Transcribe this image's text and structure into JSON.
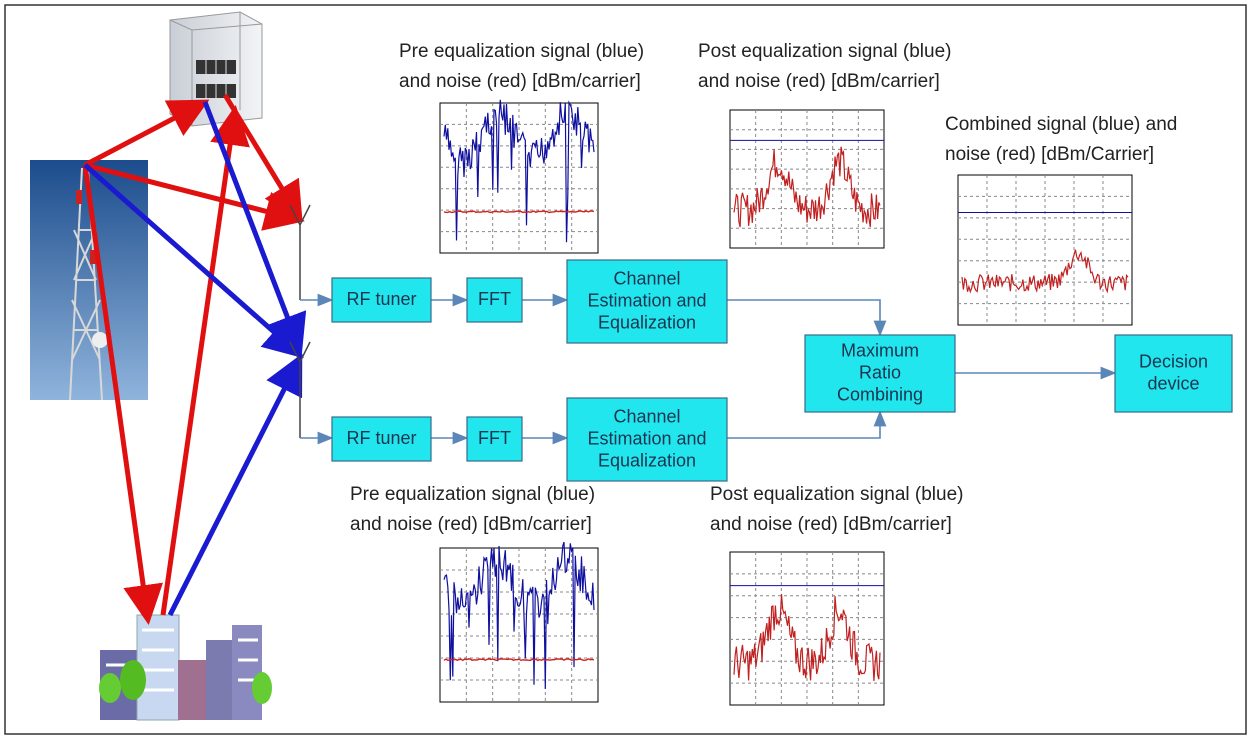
{
  "captions": [
    {
      "lines": [
        "Pre equalization signal (blue)",
        "and noise (red) [dBm/carrier]"
      ]
    },
    {
      "lines": [
        "Post equalization signal (blue)",
        "and noise (red) [dBm/carrier]"
      ]
    },
    {
      "lines": [
        "Combined signal (blue) and",
        "noise (red) [dBm/Carrier]"
      ]
    },
    {
      "lines": [
        "Pre equalization signal (blue)",
        "and noise (red) [dBm/carrier]"
      ]
    },
    {
      "lines": [
        "Post equalization signal (blue)",
        "and noise (red) [dBm/carrier]"
      ]
    }
  ],
  "blocks": [
    {
      "lines": [
        "RF tuner"
      ]
    },
    {
      "lines": [
        "FFT"
      ]
    },
    {
      "lines": [
        "Channel",
        "Estimation and",
        "Equalization"
      ]
    },
    {
      "lines": [
        "RF tuner"
      ]
    },
    {
      "lines": [
        "FFT"
      ]
    },
    {
      "lines": [
        "Channel",
        "Estimation and",
        "Equalization"
      ]
    },
    {
      "lines": [
        "Maximum",
        "Ratio",
        "Combining"
      ]
    },
    {
      "lines": [
        "Decision",
        "device"
      ]
    }
  ]
}
